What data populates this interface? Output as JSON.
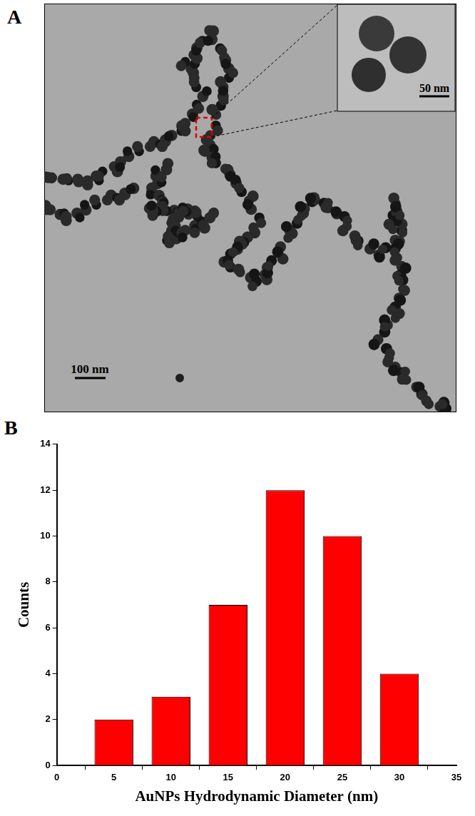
{
  "image_panel": {
    "label": "A",
    "type": "image",
    "scale_bar": "100 nm",
    "inset_scale_bar": "50 nm"
  },
  "chart_data": {
    "panel_label": "B",
    "type": "bar",
    "x": [
      5,
      10,
      15,
      20,
      25,
      30
    ],
    "values": [
      2,
      3,
      7,
      12,
      10,
      4
    ],
    "color": "#ff0000",
    "xlabel": "AuNPs Hydrodynamic Diameter (nm)",
    "ylabel": "Counts",
    "xlim": [
      0,
      35
    ],
    "xticks": [
      0,
      5,
      10,
      15,
      20,
      25,
      30,
      35
    ],
    "ylim": [
      0,
      14
    ],
    "yticks": [
      0,
      2,
      4,
      6,
      8,
      10,
      12,
      14
    ],
    "grid": false
  }
}
